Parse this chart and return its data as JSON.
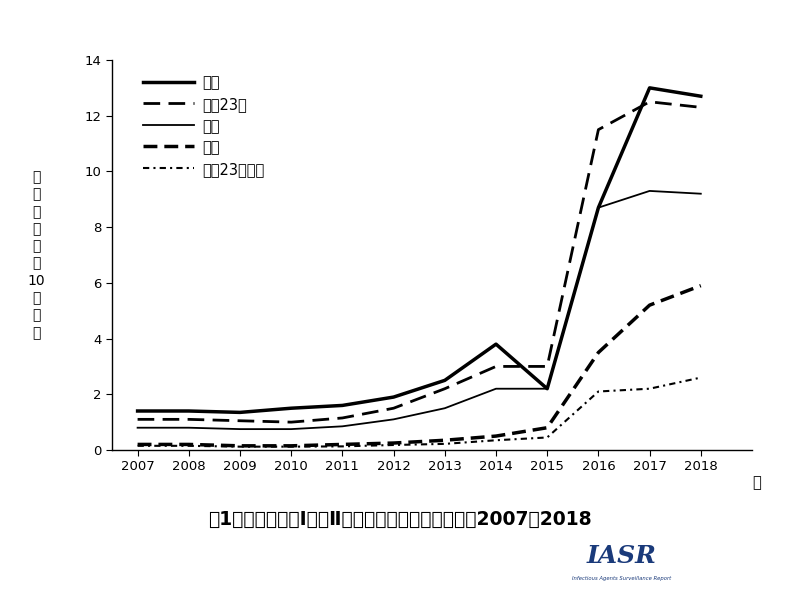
{
  "years": [
    2007,
    2008,
    2009,
    2010,
    2011,
    2012,
    2013,
    2014,
    2015,
    2016,
    2017,
    2018
  ],
  "series_order": [
    "男性",
    "東京23区",
    "全体",
    "女性",
    "東京23区以外"
  ],
  "series": {
    "男性": [
      1.4,
      1.4,
      1.35,
      1.5,
      1.6,
      1.9,
      2.5,
      3.8,
      2.2,
      8.7,
      13.0,
      12.7
    ],
    "東京23区": [
      1.1,
      1.1,
      1.05,
      1.0,
      1.15,
      1.5,
      2.2,
      3.0,
      3.0,
      11.5,
      12.5,
      12.3
    ],
    "全体": [
      0.8,
      0.8,
      0.75,
      0.75,
      0.85,
      1.1,
      1.5,
      2.2,
      2.2,
      8.7,
      9.3,
      9.2
    ],
    "女性": [
      0.2,
      0.2,
      0.15,
      0.15,
      0.2,
      0.25,
      0.35,
      0.5,
      0.8,
      3.5,
      5.2,
      5.9
    ],
    "東京23区以外": [
      0.15,
      0.15,
      0.12,
      0.12,
      0.13,
      0.18,
      0.22,
      0.35,
      0.45,
      2.1,
      2.2,
      2.6
    ]
  },
  "linewidths": {
    "男性": 2.5,
    "東京23区": 2.0,
    "全体": 1.3,
    "女性": 2.5,
    "東京23区以外": 1.5
  },
  "ylim": [
    0,
    14
  ],
  "yticks": [
    0,
    2,
    4,
    6,
    8,
    10,
    12,
    14
  ],
  "title": "図1．東京都でのⅠ期・Ⅱ期梅毒届出率の年次推移、2007〜2018",
  "ylabel_chars": [
    "届",
    "出",
    "率",
    "（",
    "人",
    "口",
    "10",
    "万",
    "対",
    "）"
  ],
  "xlabel_suffix": "年",
  "background_color": "#ffffff",
  "iasr_bg_color": "#70b8d8",
  "iasr_text_color": "#1a3a7a",
  "iasr_small_color": "#1a3a7a"
}
